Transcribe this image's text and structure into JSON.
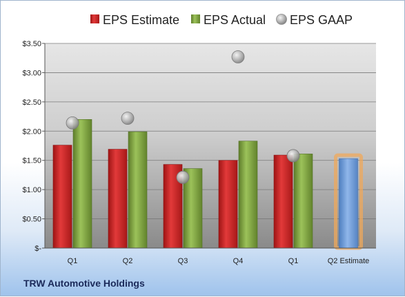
{
  "company": "TRW Automotive Holdings",
  "legend": [
    {
      "label": "EPS Estimate",
      "marker": "square",
      "color": "#d32f2f"
    },
    {
      "label": "EPS Actual",
      "marker": "square",
      "color": "#8fb04a"
    },
    {
      "label": "EPS GAAP",
      "marker": "circle",
      "color": "#b8b8b8"
    }
  ],
  "chart_data": {
    "type": "bar",
    "categories": [
      "Q1",
      "Q2",
      "Q3",
      "Q4",
      "Q1",
      "Q2 Estimate"
    ],
    "ylim": [
      0,
      3.5
    ],
    "yticks": [
      {
        "value": 0,
        "label": "$-"
      },
      {
        "value": 0.5,
        "label": "$0.50"
      },
      {
        "value": 1.0,
        "label": "$1.00"
      },
      {
        "value": 1.5,
        "label": "$1.50"
      },
      {
        "value": 2.0,
        "label": "$2.00"
      },
      {
        "value": 2.5,
        "label": "$2.50"
      },
      {
        "value": 3.0,
        "label": "$3.00"
      },
      {
        "value": 3.5,
        "label": "$3.50"
      }
    ],
    "grid": true,
    "legend_position": "top",
    "series": [
      {
        "name": "EPS Estimate",
        "type": "bar",
        "color": "#d32f2f",
        "values": [
          1.76,
          1.69,
          1.43,
          1.5,
          1.59,
          null
        ]
      },
      {
        "name": "EPS Actual",
        "type": "bar",
        "color": "#8fb04a",
        "values": [
          2.2,
          1.99,
          1.36,
          1.83,
          1.61,
          null
        ]
      },
      {
        "name": "EPS GAAP",
        "type": "scatter",
        "color": "#b8b8b8",
        "values": [
          2.14,
          2.22,
          1.21,
          3.27,
          1.58,
          null
        ]
      },
      {
        "name": "Q2 Estimate",
        "type": "bar",
        "color": "#7aa5dd",
        "highlight": "#f0a85a",
        "values": [
          null,
          null,
          null,
          null,
          null,
          1.53
        ]
      }
    ]
  }
}
